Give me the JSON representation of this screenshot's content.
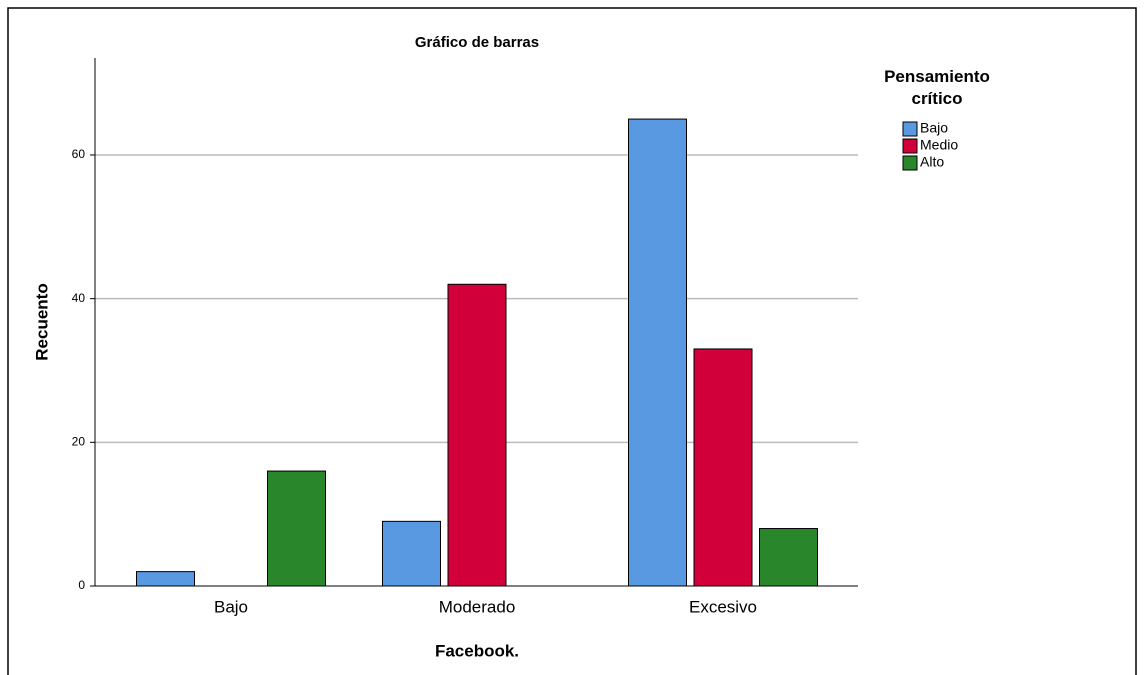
{
  "chart_data": {
    "type": "bar",
    "title": "Gráfico de barras",
    "x_label": "Facebook.",
    "y_label": "Recuento",
    "legend_title": "Pensamiento crítico",
    "categories": [
      "Bajo",
      "Moderado",
      "Excesivo"
    ],
    "series": [
      {
        "name": "Bajo",
        "color": "#5899e2",
        "values": [
          2,
          9,
          65
        ]
      },
      {
        "name": "Medio",
        "color": "#d2003a",
        "values": [
          0,
          42,
          33
        ]
      },
      {
        "name": "Alto",
        "color": "#2a862a",
        "values": [
          16,
          0,
          8
        ]
      }
    ],
    "ylim": [
      0,
      73.5
    ],
    "yticks": [
      0,
      20,
      40,
      60
    ],
    "grid": true,
    "legend": "right"
  }
}
